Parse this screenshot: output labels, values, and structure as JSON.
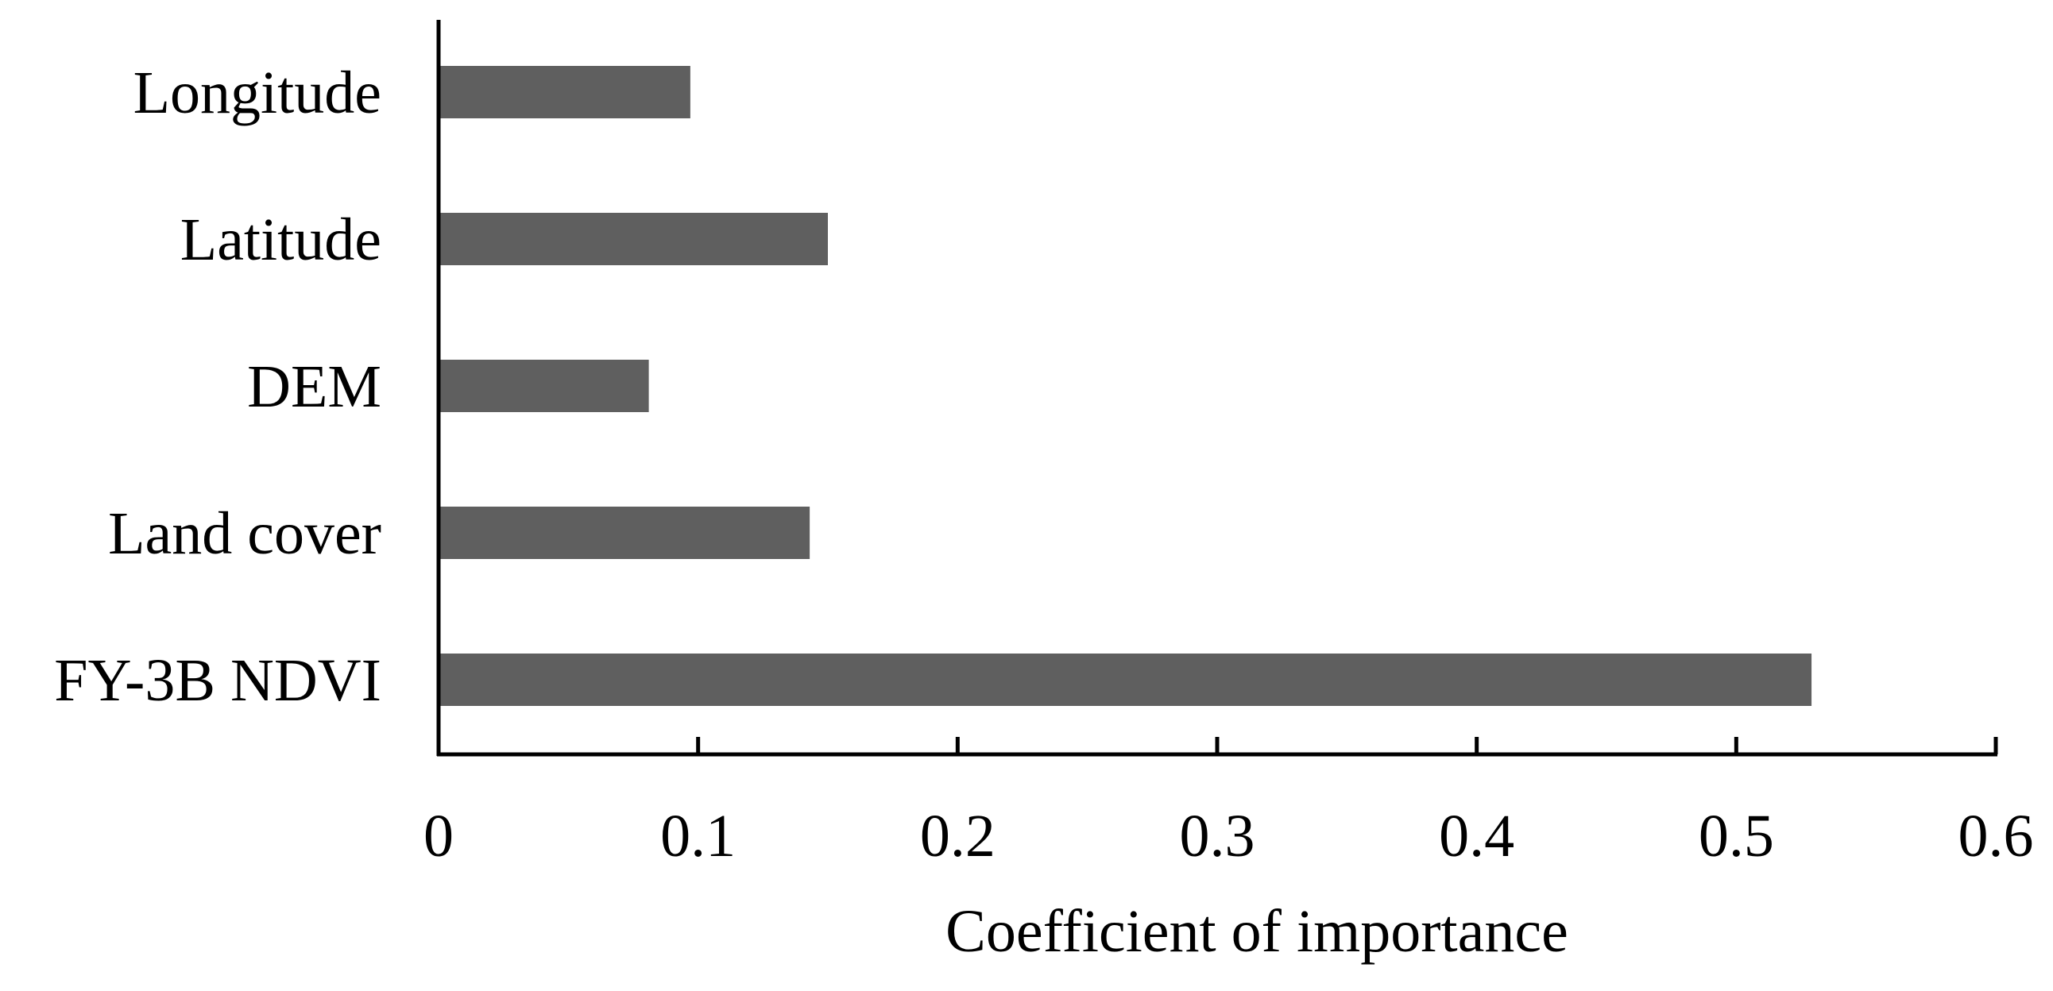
{
  "chart_data": {
    "type": "bar",
    "orientation": "horizontal",
    "title": "",
    "categories": [
      "Longitude",
      "Latitude",
      "DEM",
      "Land cover",
      "FY-3B NDVI"
    ],
    "values": [
      0.097,
      0.15,
      0.081,
      0.143,
      0.529
    ],
    "xlabel": "Coefficient of importance",
    "ylabel": "",
    "xlim": [
      0,
      0.6
    ],
    "xticks": [
      "0",
      "0.1",
      "0.2",
      "0.3",
      "0.4",
      "0.5",
      "0.6"
    ],
    "grid": false,
    "legend": "none",
    "bar_color": "#5f5f5f"
  }
}
